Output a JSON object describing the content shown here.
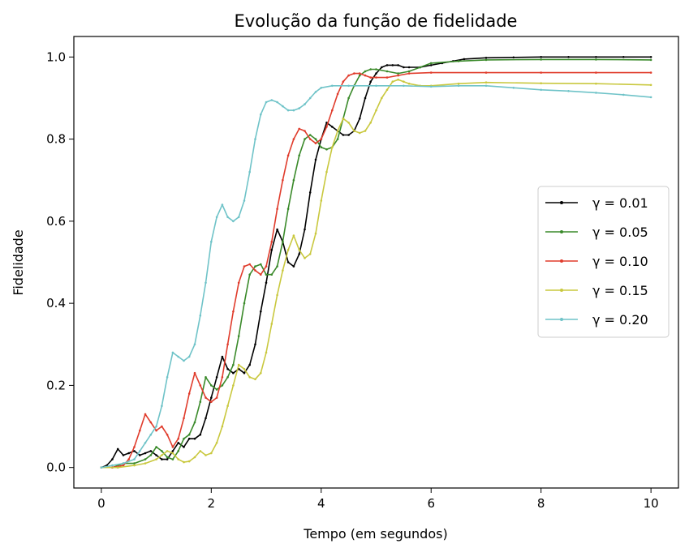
{
  "chart_data": {
    "type": "line",
    "title": "Evolução da função de fidelidade",
    "xlabel": "Tempo (em segundos)",
    "ylabel": "Fidelidade",
    "xlim": [
      -0.5,
      10.5
    ],
    "ylim": [
      -0.05,
      1.05
    ],
    "xticks": [
      0,
      2,
      4,
      6,
      8,
      10
    ],
    "xtick_labels": [
      "0",
      "2",
      "4",
      "6",
      "8",
      "10"
    ],
    "yticks": [
      0.0,
      0.2,
      0.4,
      0.6,
      0.8,
      1.0
    ],
    "ytick_labels": [
      "0.0",
      "0.2",
      "0.4",
      "0.6",
      "0.8",
      "1.0"
    ],
    "grid": false,
    "legend_position": "right",
    "series": [
      {
        "name": "γ = 0.01",
        "color": "#000000",
        "points": [
          [
            0,
            0
          ],
          [
            0.1,
            0.005
          ],
          [
            0.2,
            0.02
          ],
          [
            0.3,
            0.045
          ],
          [
            0.4,
            0.03
          ],
          [
            0.5,
            0.035
          ],
          [
            0.6,
            0.04
          ],
          [
            0.7,
            0.03
          ],
          [
            0.8,
            0.035
          ],
          [
            0.9,
            0.04
          ],
          [
            1.0,
            0.03
          ],
          [
            1.1,
            0.02
          ],
          [
            1.2,
            0.02
          ],
          [
            1.3,
            0.04
          ],
          [
            1.4,
            0.06
          ],
          [
            1.5,
            0.05
          ],
          [
            1.6,
            0.07
          ],
          [
            1.7,
            0.07
          ],
          [
            1.8,
            0.08
          ],
          [
            1.9,
            0.12
          ],
          [
            2.0,
            0.17
          ],
          [
            2.1,
            0.22
          ],
          [
            2.2,
            0.27
          ],
          [
            2.3,
            0.24
          ],
          [
            2.4,
            0.23
          ],
          [
            2.5,
            0.24
          ],
          [
            2.6,
            0.23
          ],
          [
            2.7,
            0.25
          ],
          [
            2.8,
            0.3
          ],
          [
            2.9,
            0.38
          ],
          [
            3.0,
            0.45
          ],
          [
            3.1,
            0.53
          ],
          [
            3.2,
            0.58
          ],
          [
            3.3,
            0.55
          ],
          [
            3.4,
            0.5
          ],
          [
            3.5,
            0.49
          ],
          [
            3.6,
            0.52
          ],
          [
            3.7,
            0.58
          ],
          [
            3.8,
            0.67
          ],
          [
            3.9,
            0.75
          ],
          [
            4.0,
            0.8
          ],
          [
            4.1,
            0.84
          ],
          [
            4.2,
            0.83
          ],
          [
            4.3,
            0.82
          ],
          [
            4.4,
            0.81
          ],
          [
            4.5,
            0.81
          ],
          [
            4.6,
            0.82
          ],
          [
            4.7,
            0.85
          ],
          [
            4.8,
            0.9
          ],
          [
            4.9,
            0.94
          ],
          [
            5.0,
            0.96
          ],
          [
            5.1,
            0.975
          ],
          [
            5.2,
            0.98
          ],
          [
            5.3,
            0.98
          ],
          [
            5.4,
            0.98
          ],
          [
            5.5,
            0.975
          ],
          [
            5.6,
            0.975
          ],
          [
            5.8,
            0.975
          ],
          [
            6.0,
            0.98
          ],
          [
            6.2,
            0.985
          ],
          [
            6.4,
            0.99
          ],
          [
            6.6,
            0.995
          ],
          [
            7.0,
            0.998
          ],
          [
            7.5,
            0.999
          ],
          [
            8.0,
            1.0
          ],
          [
            8.5,
            1.0
          ],
          [
            9.0,
            1.0
          ],
          [
            9.5,
            1.0
          ],
          [
            10.0,
            1.0
          ]
        ]
      },
      {
        "name": "γ = 0.05",
        "color": "#3a8a2a",
        "points": [
          [
            0,
            0
          ],
          [
            0.2,
            0.0
          ],
          [
            0.4,
            0.01
          ],
          [
            0.6,
            0.01
          ],
          [
            0.8,
            0.02
          ],
          [
            0.9,
            0.03
          ],
          [
            1.0,
            0.05
          ],
          [
            1.1,
            0.04
          ],
          [
            1.2,
            0.025
          ],
          [
            1.3,
            0.02
          ],
          [
            1.4,
            0.04
          ],
          [
            1.5,
            0.07
          ],
          [
            1.6,
            0.08
          ],
          [
            1.7,
            0.11
          ],
          [
            1.8,
            0.16
          ],
          [
            1.9,
            0.22
          ],
          [
            2.0,
            0.2
          ],
          [
            2.1,
            0.19
          ],
          [
            2.2,
            0.2
          ],
          [
            2.3,
            0.22
          ],
          [
            2.4,
            0.25
          ],
          [
            2.5,
            0.32
          ],
          [
            2.6,
            0.4
          ],
          [
            2.7,
            0.47
          ],
          [
            2.8,
            0.49
          ],
          [
            2.9,
            0.495
          ],
          [
            3.0,
            0.47
          ],
          [
            3.1,
            0.47
          ],
          [
            3.2,
            0.49
          ],
          [
            3.3,
            0.55
          ],
          [
            3.4,
            0.63
          ],
          [
            3.5,
            0.7
          ],
          [
            3.6,
            0.76
          ],
          [
            3.7,
            0.8
          ],
          [
            3.8,
            0.81
          ],
          [
            3.9,
            0.8
          ],
          [
            4.0,
            0.78
          ],
          [
            4.1,
            0.775
          ],
          [
            4.2,
            0.78
          ],
          [
            4.3,
            0.8
          ],
          [
            4.4,
            0.85
          ],
          [
            4.5,
            0.9
          ],
          [
            4.6,
            0.93
          ],
          [
            4.7,
            0.955
          ],
          [
            4.8,
            0.965
          ],
          [
            4.9,
            0.97
          ],
          [
            5.0,
            0.97
          ],
          [
            5.2,
            0.965
          ],
          [
            5.4,
            0.96
          ],
          [
            5.6,
            0.965
          ],
          [
            5.8,
            0.975
          ],
          [
            6.0,
            0.985
          ],
          [
            6.5,
            0.99
          ],
          [
            7.0,
            0.993
          ],
          [
            8.0,
            0.994
          ],
          [
            9.0,
            0.994
          ],
          [
            10.0,
            0.993
          ]
        ]
      },
      {
        "name": "γ = 0.10",
        "color": "#e03c2c",
        "points": [
          [
            0,
            0
          ],
          [
            0.2,
            0.0
          ],
          [
            0.4,
            0.005
          ],
          [
            0.5,
            0.02
          ],
          [
            0.6,
            0.05
          ],
          [
            0.7,
            0.09
          ],
          [
            0.8,
            0.13
          ],
          [
            0.9,
            0.11
          ],
          [
            1.0,
            0.09
          ],
          [
            1.1,
            0.1
          ],
          [
            1.2,
            0.08
          ],
          [
            1.3,
            0.05
          ],
          [
            1.4,
            0.07
          ],
          [
            1.5,
            0.12
          ],
          [
            1.6,
            0.18
          ],
          [
            1.7,
            0.23
          ],
          [
            1.8,
            0.2
          ],
          [
            1.9,
            0.17
          ],
          [
            2.0,
            0.16
          ],
          [
            2.1,
            0.17
          ],
          [
            2.2,
            0.22
          ],
          [
            2.3,
            0.3
          ],
          [
            2.4,
            0.38
          ],
          [
            2.5,
            0.45
          ],
          [
            2.6,
            0.49
          ],
          [
            2.7,
            0.495
          ],
          [
            2.8,
            0.48
          ],
          [
            2.9,
            0.47
          ],
          [
            3.0,
            0.49
          ],
          [
            3.1,
            0.55
          ],
          [
            3.2,
            0.63
          ],
          [
            3.3,
            0.7
          ],
          [
            3.4,
            0.76
          ],
          [
            3.5,
            0.8
          ],
          [
            3.6,
            0.825
          ],
          [
            3.7,
            0.82
          ],
          [
            3.8,
            0.8
          ],
          [
            3.9,
            0.79
          ],
          [
            4.0,
            0.8
          ],
          [
            4.1,
            0.83
          ],
          [
            4.2,
            0.87
          ],
          [
            4.3,
            0.91
          ],
          [
            4.4,
            0.94
          ],
          [
            4.5,
            0.955
          ],
          [
            4.6,
            0.96
          ],
          [
            4.7,
            0.96
          ],
          [
            4.8,
            0.955
          ],
          [
            4.9,
            0.95
          ],
          [
            5.0,
            0.95
          ],
          [
            5.2,
            0.95
          ],
          [
            5.4,
            0.955
          ],
          [
            5.6,
            0.96
          ],
          [
            6.0,
            0.962
          ],
          [
            7.0,
            0.962
          ],
          [
            8.0,
            0.962
          ],
          [
            9.0,
            0.962
          ],
          [
            10.0,
            0.962
          ]
        ]
      },
      {
        "name": "γ = 0.15",
        "color": "#c9c83e",
        "points": [
          [
            0,
            0
          ],
          [
            0.3,
            0.0
          ],
          [
            0.6,
            0.005
          ],
          [
            0.8,
            0.01
          ],
          [
            1.0,
            0.02
          ],
          [
            1.1,
            0.03
          ],
          [
            1.2,
            0.04
          ],
          [
            1.3,
            0.035
          ],
          [
            1.4,
            0.02
          ],
          [
            1.5,
            0.013
          ],
          [
            1.6,
            0.015
          ],
          [
            1.7,
            0.025
          ],
          [
            1.8,
            0.04
          ],
          [
            1.9,
            0.03
          ],
          [
            2.0,
            0.035
          ],
          [
            2.1,
            0.06
          ],
          [
            2.2,
            0.1
          ],
          [
            2.3,
            0.15
          ],
          [
            2.4,
            0.2
          ],
          [
            2.5,
            0.25
          ],
          [
            2.6,
            0.24
          ],
          [
            2.7,
            0.22
          ],
          [
            2.8,
            0.215
          ],
          [
            2.9,
            0.23
          ],
          [
            3.0,
            0.28
          ],
          [
            3.1,
            0.35
          ],
          [
            3.2,
            0.42
          ],
          [
            3.3,
            0.48
          ],
          [
            3.4,
            0.53
          ],
          [
            3.5,
            0.565
          ],
          [
            3.6,
            0.53
          ],
          [
            3.7,
            0.51
          ],
          [
            3.8,
            0.52
          ],
          [
            3.9,
            0.57
          ],
          [
            4.0,
            0.65
          ],
          [
            4.1,
            0.72
          ],
          [
            4.2,
            0.78
          ],
          [
            4.3,
            0.82
          ],
          [
            4.4,
            0.85
          ],
          [
            4.5,
            0.84
          ],
          [
            4.6,
            0.82
          ],
          [
            4.7,
            0.815
          ],
          [
            4.8,
            0.82
          ],
          [
            4.9,
            0.84
          ],
          [
            5.0,
            0.87
          ],
          [
            5.1,
            0.9
          ],
          [
            5.2,
            0.92
          ],
          [
            5.3,
            0.94
          ],
          [
            5.4,
            0.945
          ],
          [
            5.5,
            0.94
          ],
          [
            5.6,
            0.935
          ],
          [
            5.8,
            0.93
          ],
          [
            6.0,
            0.93
          ],
          [
            6.5,
            0.935
          ],
          [
            7.0,
            0.938
          ],
          [
            8.0,
            0.936
          ],
          [
            9.0,
            0.935
          ],
          [
            10.0,
            0.932
          ]
        ]
      },
      {
        "name": "γ = 0.20",
        "color": "#6fc3c8",
        "points": [
          [
            0,
            0
          ],
          [
            0.2,
            0.005
          ],
          [
            0.4,
            0.01
          ],
          [
            0.6,
            0.02
          ],
          [
            0.7,
            0.04
          ],
          [
            0.8,
            0.06
          ],
          [
            0.9,
            0.08
          ],
          [
            1.0,
            0.1
          ],
          [
            1.1,
            0.15
          ],
          [
            1.2,
            0.22
          ],
          [
            1.3,
            0.28
          ],
          [
            1.4,
            0.27
          ],
          [
            1.5,
            0.26
          ],
          [
            1.6,
            0.27
          ],
          [
            1.7,
            0.3
          ],
          [
            1.8,
            0.37
          ],
          [
            1.9,
            0.45
          ],
          [
            2.0,
            0.55
          ],
          [
            2.1,
            0.61
          ],
          [
            2.2,
            0.64
          ],
          [
            2.3,
            0.61
          ],
          [
            2.4,
            0.6
          ],
          [
            2.5,
            0.61
          ],
          [
            2.6,
            0.65
          ],
          [
            2.7,
            0.72
          ],
          [
            2.8,
            0.8
          ],
          [
            2.9,
            0.86
          ],
          [
            3.0,
            0.89
          ],
          [
            3.1,
            0.895
          ],
          [
            3.2,
            0.89
          ],
          [
            3.3,
            0.88
          ],
          [
            3.4,
            0.87
          ],
          [
            3.5,
            0.87
          ],
          [
            3.6,
            0.875
          ],
          [
            3.7,
            0.885
          ],
          [
            3.8,
            0.9
          ],
          [
            3.9,
            0.915
          ],
          [
            4.0,
            0.925
          ],
          [
            4.2,
            0.93
          ],
          [
            4.5,
            0.93
          ],
          [
            5.0,
            0.93
          ],
          [
            5.5,
            0.93
          ],
          [
            6.0,
            0.928
          ],
          [
            6.5,
            0.93
          ],
          [
            7.0,
            0.93
          ],
          [
            7.5,
            0.925
          ],
          [
            8.0,
            0.92
          ],
          [
            8.5,
            0.917
          ],
          [
            9.0,
            0.913
          ],
          [
            9.5,
            0.908
          ],
          [
            10.0,
            0.902
          ]
        ]
      }
    ]
  }
}
